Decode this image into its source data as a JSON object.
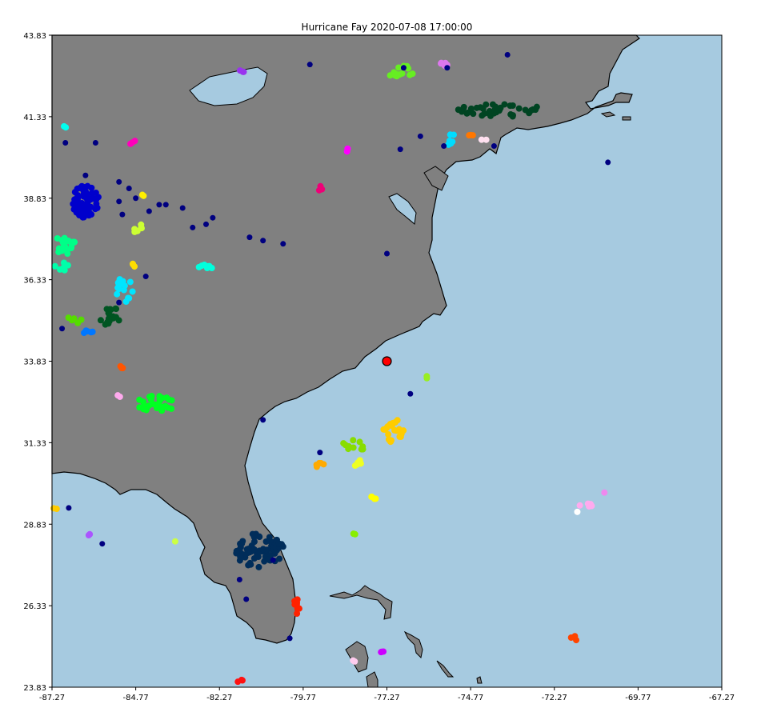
{
  "title": "Hurricane Fay 2020-07-08 17:00:00",
  "colors": {
    "ocean": "#a6cae0",
    "land": "#808080",
    "coast": "#000000",
    "storm": "#ff0000"
  },
  "chart_data": {
    "type": "scatter",
    "title": "Hurricane Fay 2020-07-08 17:00:00",
    "xlim": [
      -87.27,
      -67.27
    ],
    "ylim": [
      23.83,
      43.83
    ],
    "x_ticks": [
      "-87.27",
      "-84.77",
      "-82.27",
      "-79.77",
      "-77.27",
      "-74.77",
      "-72.27",
      "-69.77",
      "-67.27"
    ],
    "y_ticks": [
      "23.83",
      "26.33",
      "28.83",
      "31.33",
      "33.83",
      "36.33",
      "38.83",
      "41.33",
      "43.83"
    ],
    "storm_center": {
      "lon": -77.27,
      "lat": 33.83
    },
    "clusters": [
      {
        "lon": -76.87,
        "lat": 42.73,
        "rx": 0.45,
        "ry": 0.18,
        "n": 14,
        "color": "#66ee22"
      },
      {
        "lon": -75.57,
        "lat": 42.93,
        "rx": 0.15,
        "ry": 0.1,
        "n": 5,
        "color": "#dd77ee"
      },
      {
        "lon": -81.57,
        "lat": 42.73,
        "rx": 0.1,
        "ry": 0.05,
        "n": 3,
        "color": "#9933ee"
      },
      {
        "lon": -73.87,
        "lat": 41.53,
        "rx": 1.3,
        "ry": 0.2,
        "n": 40,
        "color": "#004422"
      },
      {
        "lon": -75.27,
        "lat": 40.63,
        "rx": 0.3,
        "ry": 0.2,
        "n": 8,
        "color": "#00ddff"
      },
      {
        "lon": -74.77,
        "lat": 40.73,
        "rx": 0.12,
        "ry": 0.06,
        "n": 3,
        "color": "#ff7700"
      },
      {
        "lon": -74.37,
        "lat": 40.63,
        "rx": 0.08,
        "ry": 0.05,
        "n": 2,
        "color": "#ffe0f0"
      },
      {
        "lon": -86.87,
        "lat": 41.03,
        "rx": 0.06,
        "ry": 0.05,
        "n": 2,
        "color": "#00ffee"
      },
      {
        "lon": -84.87,
        "lat": 40.53,
        "rx": 0.12,
        "ry": 0.08,
        "n": 3,
        "color": "#ff00bb"
      },
      {
        "lon": -78.47,
        "lat": 40.33,
        "rx": 0.1,
        "ry": 0.08,
        "n": 3,
        "color": "#ff00ff"
      },
      {
        "lon": -79.27,
        "lat": 39.13,
        "rx": 0.12,
        "ry": 0.1,
        "n": 3,
        "color": "#ee0077"
      },
      {
        "lon": -86.27,
        "lat": 38.73,
        "rx": 0.4,
        "ry": 0.5,
        "n": 70,
        "color": "#0000cc"
      },
      {
        "lon": -84.57,
        "lat": 38.93,
        "rx": 0.08,
        "ry": 0.05,
        "n": 2,
        "color": "#ffee00"
      },
      {
        "lon": -84.77,
        "lat": 37.93,
        "rx": 0.2,
        "ry": 0.15,
        "n": 6,
        "color": "#ccff33"
      },
      {
        "lon": -86.87,
        "lat": 37.43,
        "rx": 0.3,
        "ry": 0.35,
        "n": 20,
        "color": "#00ff88"
      },
      {
        "lon": -86.97,
        "lat": 36.73,
        "rx": 0.22,
        "ry": 0.15,
        "n": 8,
        "color": "#00ffaa"
      },
      {
        "lon": -84.87,
        "lat": 36.73,
        "rx": 0.12,
        "ry": 0.1,
        "n": 3,
        "color": "#ffdd00"
      },
      {
        "lon": -82.67,
        "lat": 36.73,
        "rx": 0.22,
        "ry": 0.1,
        "n": 8,
        "color": "#00ffdd"
      },
      {
        "lon": -85.07,
        "lat": 36.03,
        "rx": 0.3,
        "ry": 0.4,
        "n": 16,
        "color": "#00e5ff"
      },
      {
        "lon": -85.57,
        "lat": 35.23,
        "rx": 0.35,
        "ry": 0.3,
        "n": 18,
        "color": "#005522"
      },
      {
        "lon": -86.57,
        "lat": 35.13,
        "rx": 0.25,
        "ry": 0.15,
        "n": 6,
        "color": "#55dd00"
      },
      {
        "lon": -86.17,
        "lat": 34.73,
        "rx": 0.18,
        "ry": 0.08,
        "n": 5,
        "color": "#0077ff"
      },
      {
        "lon": -85.17,
        "lat": 33.63,
        "rx": 0.15,
        "ry": 0.1,
        "n": 4,
        "color": "#ff5500"
      },
      {
        "lon": -85.27,
        "lat": 32.73,
        "rx": 0.08,
        "ry": 0.06,
        "n": 2,
        "color": "#ffaaee"
      },
      {
        "lon": -84.17,
        "lat": 32.53,
        "rx": 0.6,
        "ry": 0.25,
        "n": 28,
        "color": "#00ff22"
      },
      {
        "lon": -76.07,
        "lat": 33.33,
        "rx": 0.06,
        "ry": 0.05,
        "n": 2,
        "color": "#99ee22"
      },
      {
        "lon": -77.07,
        "lat": 31.73,
        "rx": 0.3,
        "ry": 0.4,
        "n": 22,
        "color": "#ffcc00"
      },
      {
        "lon": -78.27,
        "lat": 31.23,
        "rx": 0.35,
        "ry": 0.2,
        "n": 10,
        "color": "#88dd00"
      },
      {
        "lon": -79.27,
        "lat": 30.63,
        "rx": 0.18,
        "ry": 0.1,
        "n": 5,
        "color": "#ffaa00"
      },
      {
        "lon": -78.17,
        "lat": 30.73,
        "rx": 0.15,
        "ry": 0.12,
        "n": 5,
        "color": "#eeff22"
      },
      {
        "lon": -77.67,
        "lat": 29.63,
        "rx": 0.15,
        "ry": 0.08,
        "n": 4,
        "color": "#ffff00"
      },
      {
        "lon": -87.17,
        "lat": 29.33,
        "rx": 0.06,
        "ry": 0.05,
        "n": 2,
        "color": "#ffcc00"
      },
      {
        "lon": -71.27,
        "lat": 29.43,
        "rx": 0.25,
        "ry": 0.1,
        "n": 5,
        "color": "#ffaaee"
      },
      {
        "lon": -70.77,
        "lat": 29.83,
        "rx": 0.05,
        "ry": 0.05,
        "n": 1,
        "color": "#ee88ee"
      },
      {
        "lon": -71.57,
        "lat": 29.23,
        "rx": 0.05,
        "ry": 0.05,
        "n": 1,
        "color": "#ffffff"
      },
      {
        "lon": -86.17,
        "lat": 28.53,
        "rx": 0.06,
        "ry": 0.05,
        "n": 2,
        "color": "#aa55ff"
      },
      {
        "lon": -83.57,
        "lat": 28.33,
        "rx": 0.05,
        "ry": 0.05,
        "n": 1,
        "color": "#ccff44"
      },
      {
        "lon": -78.27,
        "lat": 28.53,
        "rx": 0.06,
        "ry": 0.05,
        "n": 2,
        "color": "#88ee00"
      },
      {
        "lon": -81.07,
        "lat": 28.03,
        "rx": 0.75,
        "ry": 0.55,
        "n": 70,
        "color": "#002d5a"
      },
      {
        "lon": -79.97,
        "lat": 26.33,
        "rx": 0.1,
        "ry": 0.25,
        "n": 10,
        "color": "#ff2200"
      },
      {
        "lon": -71.67,
        "lat": 25.33,
        "rx": 0.12,
        "ry": 0.08,
        "n": 3,
        "color": "#ff4400"
      },
      {
        "lon": -77.37,
        "lat": 24.93,
        "rx": 0.1,
        "ry": 0.05,
        "n": 3,
        "color": "#cc00ff"
      },
      {
        "lon": -78.27,
        "lat": 24.63,
        "rx": 0.08,
        "ry": 0.05,
        "n": 2,
        "color": "#ffccee"
      },
      {
        "lon": -81.67,
        "lat": 24.03,
        "rx": 0.1,
        "ry": 0.04,
        "n": 3,
        "color": "#ff1111"
      }
    ],
    "points": [
      {
        "lon": -79.57,
        "lat": 42.93,
        "color": "#000080"
      },
      {
        "lon": -76.77,
        "lat": 42.83,
        "color": "#000080"
      },
      {
        "lon": -75.47,
        "lat": 42.83,
        "color": "#000080"
      },
      {
        "lon": -73.67,
        "lat": 43.23,
        "color": "#000080"
      },
      {
        "lon": -76.27,
        "lat": 40.73,
        "color": "#000080"
      },
      {
        "lon": -75.57,
        "lat": 40.43,
        "color": "#000080"
      },
      {
        "lon": -76.87,
        "lat": 40.33,
        "color": "#000080"
      },
      {
        "lon": -74.07,
        "lat": 40.43,
        "color": "#000080"
      },
      {
        "lon": -70.67,
        "lat": 39.93,
        "color": "#000080"
      },
      {
        "lon": -86.87,
        "lat": 40.53,
        "color": "#000080"
      },
      {
        "lon": -85.97,
        "lat": 40.53,
        "color": "#000080"
      },
      {
        "lon": -86.27,
        "lat": 39.53,
        "color": "#000080"
      },
      {
        "lon": -85.27,
        "lat": 39.33,
        "color": "#000080"
      },
      {
        "lon": -84.97,
        "lat": 39.13,
        "color": "#000080"
      },
      {
        "lon": -84.77,
        "lat": 38.83,
        "color": "#000080"
      },
      {
        "lon": -85.27,
        "lat": 38.73,
        "color": "#000080"
      },
      {
        "lon": -84.07,
        "lat": 38.63,
        "color": "#000080"
      },
      {
        "lon": -83.87,
        "lat": 38.63,
        "color": "#000080"
      },
      {
        "lon": -83.37,
        "lat": 38.53,
        "color": "#000080"
      },
      {
        "lon": -84.37,
        "lat": 38.43,
        "color": "#000080"
      },
      {
        "lon": -85.17,
        "lat": 38.33,
        "color": "#000080"
      },
      {
        "lon": -82.47,
        "lat": 38.23,
        "color": "#000080"
      },
      {
        "lon": -82.67,
        "lat": 38.03,
        "color": "#000080"
      },
      {
        "lon": -83.07,
        "lat": 37.93,
        "color": "#000080"
      },
      {
        "lon": -81.37,
        "lat": 37.63,
        "color": "#000080"
      },
      {
        "lon": -80.97,
        "lat": 37.53,
        "color": "#000080"
      },
      {
        "lon": -80.37,
        "lat": 37.43,
        "color": "#000080"
      },
      {
        "lon": -77.27,
        "lat": 37.13,
        "color": "#000080"
      },
      {
        "lon": -84.47,
        "lat": 36.43,
        "color": "#000080"
      },
      {
        "lon": -85.27,
        "lat": 35.63,
        "color": "#000080"
      },
      {
        "lon": -86.97,
        "lat": 34.83,
        "color": "#000080"
      },
      {
        "lon": -80.97,
        "lat": 32.03,
        "color": "#000080"
      },
      {
        "lon": -76.57,
        "lat": 32.83,
        "color": "#000080"
      },
      {
        "lon": -79.27,
        "lat": 31.03,
        "color": "#000080"
      },
      {
        "lon": -86.77,
        "lat": 29.33,
        "color": "#000080"
      },
      {
        "lon": -85.77,
        "lat": 28.23,
        "color": "#000080"
      },
      {
        "lon": -80.67,
        "lat": 27.73,
        "color": "#000080"
      },
      {
        "lon": -81.67,
        "lat": 27.13,
        "color": "#000080"
      },
      {
        "lon": -81.47,
        "lat": 26.53,
        "color": "#000080"
      },
      {
        "lon": -80.17,
        "lat": 25.33,
        "color": "#000080"
      }
    ]
  }
}
